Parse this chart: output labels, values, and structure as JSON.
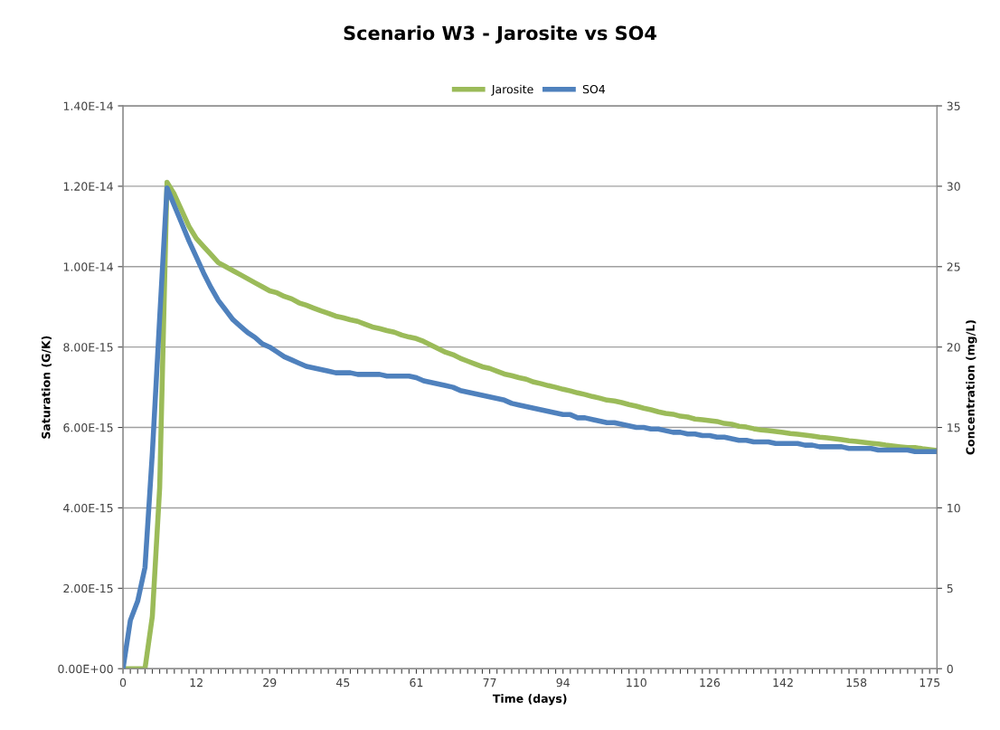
{
  "chart_data": {
    "type": "line",
    "title": "Scenario W3 - Jarosite vs SO4",
    "xlabel": "Time (days)",
    "ylabel": "Saturation (G/K)",
    "y2label": "Concentration (mg/L)",
    "categories": [
      "0",
      null,
      null,
      null,
      null,
      null,
      null,
      null,
      null,
      null,
      "12",
      null,
      null,
      null,
      null,
      null,
      null,
      null,
      null,
      null,
      "29",
      null,
      null,
      null,
      null,
      null,
      null,
      null,
      null,
      null,
      "45",
      null,
      null,
      null,
      null,
      null,
      null,
      null,
      null,
      null,
      "61",
      null,
      null,
      null,
      null,
      null,
      null,
      null,
      null,
      null,
      "77",
      null,
      null,
      null,
      null,
      null,
      null,
      null,
      null,
      null,
      "94",
      null,
      null,
      null,
      null,
      null,
      null,
      null,
      null,
      null,
      "110",
      null,
      null,
      null,
      null,
      null,
      null,
      null,
      null,
      null,
      "126",
      null,
      null,
      null,
      null,
      null,
      null,
      null,
      null,
      null,
      "142",
      null,
      null,
      null,
      null,
      null,
      null,
      null,
      null,
      null,
      "158",
      null,
      null,
      null,
      null,
      null,
      null,
      null,
      null,
      null,
      "175",
      null
    ],
    "series": [
      {
        "name": "Jarosite",
        "color": "#9bbb59",
        "values": [
          0,
          0,
          0,
          0,
          1.3e-15,
          4.5e-15,
          1.21e-14,
          1.18e-14,
          1.14e-14,
          1.1e-14,
          1.07e-14,
          1.05e-14,
          1.03e-14,
          1.01e-14,
          1e-14,
          9.9e-15,
          9.8e-15,
          9.7e-15,
          9.6e-15,
          9.5e-15,
          9.4e-15,
          9.35e-15,
          9.26e-15,
          9.2e-15,
          9.1e-15,
          9.04e-15,
          8.97e-15,
          8.9e-15,
          8.84e-15,
          8.77e-15,
          8.73e-15,
          8.68e-15,
          8.64e-15,
          8.57e-15,
          8.5e-15,
          8.46e-15,
          8.41e-15,
          8.37e-15,
          8.3e-15,
          8.25e-15,
          8.21e-15,
          8.14e-15,
          8.05e-15,
          7.96e-15,
          7.87e-15,
          7.81e-15,
          7.72e-15,
          7.65e-15,
          7.58e-15,
          7.51e-15,
          7.47e-15,
          7.4e-15,
          7.33e-15,
          7.29e-15,
          7.24e-15,
          7.2e-15,
          7.13e-15,
          7.09e-15,
          7.04e-15,
          7e-15,
          6.95e-15,
          6.91e-15,
          6.86e-15,
          6.82e-15,
          6.77e-15,
          6.73e-15,
          6.68e-15,
          6.66e-15,
          6.62e-15,
          6.57e-15,
          6.53e-15,
          6.48e-15,
          6.44e-15,
          6.39e-15,
          6.35e-15,
          6.33e-15,
          6.28e-15,
          6.26e-15,
          6.21e-15,
          6.19e-15,
          6.17e-15,
          6.15e-15,
          6.1e-15,
          6.08e-15,
          6.03e-15,
          6.01e-15,
          5.97e-15,
          5.94e-15,
          5.92e-15,
          5.9e-15,
          5.88e-15,
          5.85e-15,
          5.83e-15,
          5.81e-15,
          5.79e-15,
          5.76e-15,
          5.74e-15,
          5.72e-15,
          5.7e-15,
          5.67e-15,
          5.65e-15,
          5.63e-15,
          5.61e-15,
          5.59e-15,
          5.56e-15,
          5.54e-15,
          5.52e-15,
          5.5e-15,
          5.5e-15,
          5.47e-15,
          5.45e-15,
          5.43e-15
        ]
      },
      {
        "name": "SO4",
        "color": "#4f81bd",
        "axis": "y2",
        "values": [
          0,
          3.0,
          4.2,
          6.3,
          13.4,
          21.8,
          29.9,
          28.8,
          27.7,
          26.6,
          25.6,
          24.6,
          23.7,
          22.9,
          22.3,
          21.7,
          21.3,
          20.9,
          20.6,
          20.2,
          20.0,
          19.7,
          19.4,
          19.2,
          19.0,
          18.8,
          18.7,
          18.6,
          18.5,
          18.4,
          18.4,
          18.4,
          18.3,
          18.3,
          18.3,
          18.3,
          18.2,
          18.2,
          18.2,
          18.2,
          18.1,
          17.9,
          17.8,
          17.7,
          17.6,
          17.5,
          17.3,
          17.2,
          17.1,
          17.0,
          16.9,
          16.8,
          16.7,
          16.5,
          16.4,
          16.3,
          16.2,
          16.1,
          16.0,
          15.9,
          15.8,
          15.8,
          15.6,
          15.6,
          15.5,
          15.4,
          15.3,
          15.3,
          15.2,
          15.1,
          15.0,
          15.0,
          14.9,
          14.9,
          14.8,
          14.7,
          14.7,
          14.6,
          14.6,
          14.5,
          14.5,
          14.4,
          14.4,
          14.3,
          14.2,
          14.2,
          14.1,
          14.1,
          14.1,
          14.0,
          14.0,
          14.0,
          14.0,
          13.9,
          13.9,
          13.8,
          13.8,
          13.8,
          13.8,
          13.7,
          13.7,
          13.7,
          13.7,
          13.6,
          13.6,
          13.6,
          13.6,
          13.6,
          13.5,
          13.5,
          13.5,
          13.5
        ]
      }
    ],
    "ylim": [
      0,
      1.4e-14
    ],
    "yticks": [
      {
        "value": 0,
        "label": "0.00E+00"
      },
      {
        "value": 2e-15,
        "label": "2.00E-15"
      },
      {
        "value": 4e-15,
        "label": "4.00E-15"
      },
      {
        "value": 6e-15,
        "label": "6.00E-15"
      },
      {
        "value": 8e-15,
        "label": "8.00E-15"
      },
      {
        "value": 1e-14,
        "label": "1.00E-14"
      },
      {
        "value": 1.2e-14,
        "label": "1.20E-14"
      },
      {
        "value": 1.4e-14,
        "label": "1.40E-14"
      }
    ],
    "y2lim": [
      0,
      35
    ],
    "y2ticks": [
      0,
      5,
      10,
      15,
      20,
      25,
      30,
      35
    ],
    "grid": "y",
    "legend": "top",
    "marker": "none",
    "line_style": "solid"
  }
}
